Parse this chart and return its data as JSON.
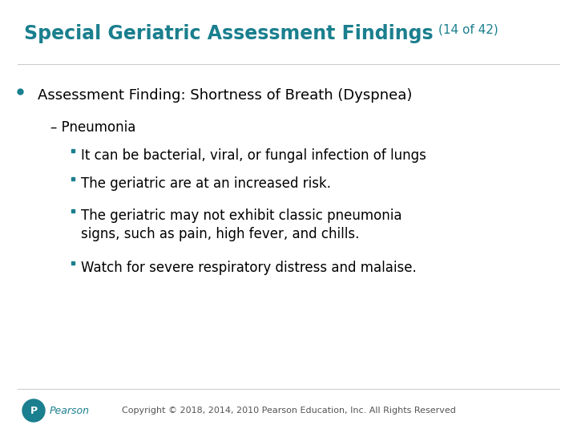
{
  "title_main": "Special Geriatric Assessment Findings",
  "title_suffix": "(14 of 42)",
  "title_color": "#1a7f8e",
  "title_fontsize": 17,
  "title_suffix_fontsize": 11,
  "background_color": "#ffffff",
  "bullet1": "Assessment Finding: Shortness of Breath (Dyspnea)",
  "bullet1_color": "#000000",
  "bullet1_fontsize": 13,
  "sub1": "– Pneumonia",
  "sub1_color": "#000000",
  "sub1_fontsize": 12,
  "sub_bullets": [
    "It can be bacterial, viral, or fungal infection of lungs",
    "The geriatric are at an increased risk.",
    "The geriatric may not exhibit classic pneumonia\nsigns, such as pain, high fever, and chills.",
    "Watch for severe respiratory distress and malaise."
  ],
  "sub_bullet_color": "#000000",
  "sub_bullet_fontsize": 12,
  "bullet_marker_color": "#1a7f8e",
  "copyright_text": "Copyright © 2018, 2014, 2010 Pearson Education, Inc. All Rights Reserved",
  "copyright_fontsize": 8,
  "copyright_color": "#555555",
  "line_color": "#cccccc"
}
